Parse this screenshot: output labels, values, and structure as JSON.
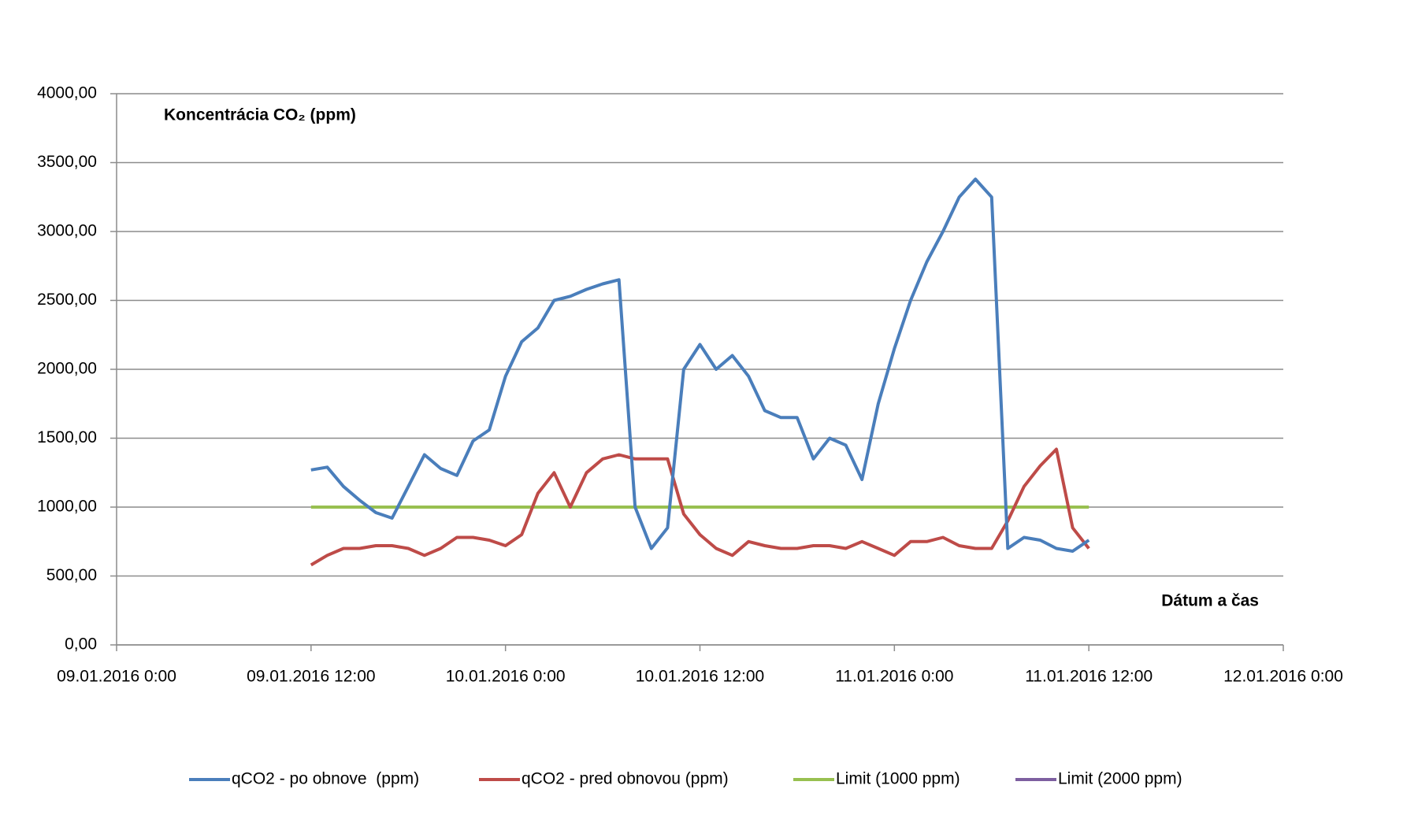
{
  "chart_data": {
    "type": "line",
    "y_label": "Koncentrácia CO₂ (ppm)",
    "x_label": "Dátum a čas",
    "x": [
      12,
      13,
      14,
      15,
      16,
      17,
      18,
      19,
      20,
      21,
      22,
      23,
      24,
      25,
      26,
      27,
      28,
      29,
      30,
      31,
      32,
      33,
      34,
      35,
      36,
      37,
      38,
      39,
      40,
      41,
      42,
      43,
      44,
      45,
      46,
      47,
      48,
      49,
      50,
      51,
      52,
      53,
      54,
      55,
      56,
      57,
      58,
      59,
      60
    ],
    "series": [
      {
        "name": "qCO2 - po obnove  (ppm)",
        "color": "#4a7ebb",
        "values": [
          1270,
          1290,
          1150,
          1050,
          960,
          920,
          1150,
          1380,
          1280,
          1230,
          1480,
          1560,
          1950,
          2200,
          2300,
          2500,
          2530,
          2580,
          2620,
          2650,
          1000,
          700,
          850,
          2000,
          2180,
          2000,
          2100,
          1950,
          1700,
          1650,
          1650,
          1350,
          1500,
          1450,
          1200,
          1750,
          2150,
          2500,
          2780,
          3000,
          3250,
          3380,
          3250,
          700,
          780,
          760,
          700,
          680,
          760
        ]
      },
      {
        "name": "qCO2 - pred obnovou (ppm)",
        "color": "#be4b48",
        "values": [
          580,
          650,
          700,
          700,
          720,
          720,
          700,
          650,
          700,
          780,
          780,
          760,
          720,
          800,
          1100,
          1250,
          1000,
          1250,
          1350,
          1380,
          1350,
          1350,
          1350,
          950,
          800,
          700,
          650,
          750,
          720,
          700,
          700,
          720,
          720,
          700,
          750,
          700,
          650,
          750,
          750,
          780,
          720,
          700,
          700,
          900,
          1150,
          1300,
          1420,
          850,
          700
        ]
      },
      {
        "name": "Limit (1000 ppm)",
        "color": "#98c050",
        "values": [
          1000,
          1000,
          1000,
          1000,
          1000,
          1000,
          1000,
          1000,
          1000,
          1000,
          1000,
          1000,
          1000,
          1000,
          1000,
          1000,
          1000,
          1000,
          1000,
          1000,
          1000,
          1000,
          1000,
          1000,
          1000,
          1000,
          1000,
          1000,
          1000,
          1000,
          1000,
          1000,
          1000,
          1000,
          1000,
          1000,
          1000,
          1000,
          1000,
          1000,
          1000,
          1000,
          1000,
          1000,
          1000,
          1000,
          1000,
          1000,
          1000
        ]
      },
      {
        "name": "Limit (2000 ppm)",
        "color": "#7d5fa0",
        "values": [
          null,
          null,
          null,
          null,
          null,
          null,
          null,
          null,
          null,
          null,
          null,
          null,
          null,
          null,
          null,
          null,
          null,
          null,
          null,
          null,
          null,
          null,
          null,
          null,
          null,
          null,
          null,
          null,
          null,
          null,
          null,
          null,
          null,
          null,
          null,
          null,
          null,
          null,
          null,
          null,
          null,
          null,
          null,
          null,
          null,
          null,
          null,
          null,
          null
        ]
      }
    ],
    "xlim": [
      0,
      72
    ],
    "xticks": [
      {
        "value": 0,
        "label": "09.01.2016 0:00"
      },
      {
        "value": 12,
        "label": "09.01.2016 12:00"
      },
      {
        "value": 24,
        "label": "10.01.2016 0:00"
      },
      {
        "value": 36,
        "label": "10.01.2016 12:00"
      },
      {
        "value": 48,
        "label": "11.01.2016 0:00"
      },
      {
        "value": 60,
        "label": "11.01.2016 12:00"
      },
      {
        "value": 72,
        "label": "12.01.2016 0:00"
      }
    ],
    "ylim": [
      0,
      4000
    ],
    "yticks": [
      {
        "value": 0,
        "label": "0,00"
      },
      {
        "value": 500,
        "label": "500,00"
      },
      {
        "value": 1000,
        "label": "1000,00"
      },
      {
        "value": 1500,
        "label": "1500,00"
      },
      {
        "value": 2000,
        "label": "2000,00"
      },
      {
        "value": 2500,
        "label": "2500,00"
      },
      {
        "value": 3000,
        "label": "3000,00"
      },
      {
        "value": 3500,
        "label": "3500,00"
      },
      {
        "value": 4000,
        "label": "4000,00"
      }
    ],
    "grid": true
  }
}
